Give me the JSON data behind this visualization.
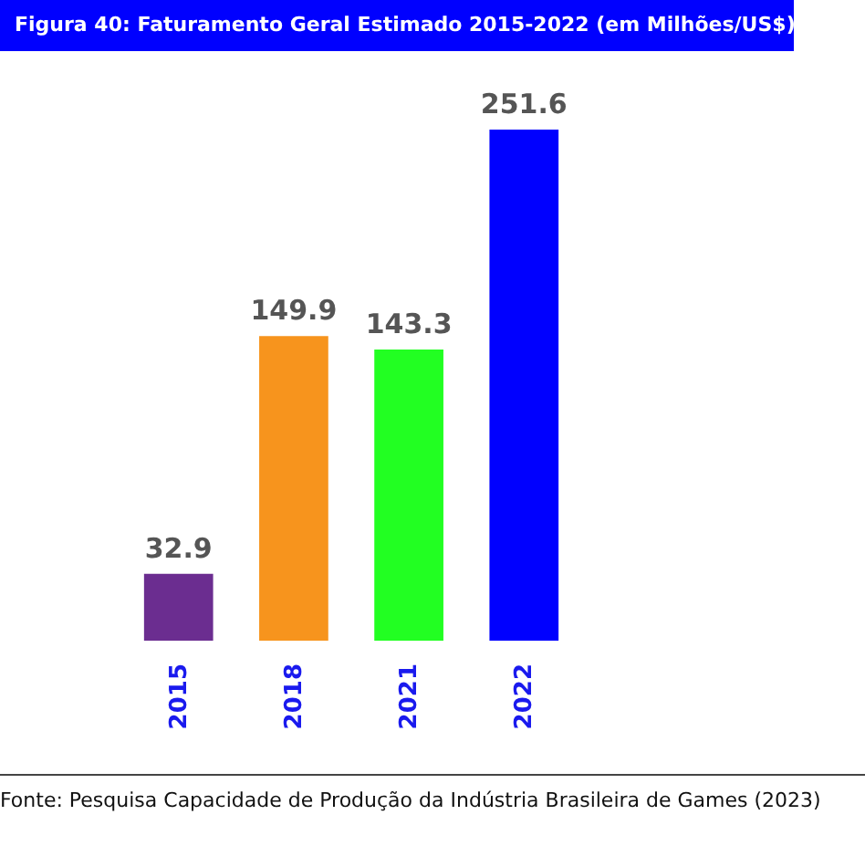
{
  "chart_data": {
    "type": "bar",
    "title": "Figura 40:  Faturamento Geral Estimado 2015-2022 (em Milhões/US$)",
    "categories": [
      "2015",
      "2018",
      "2021",
      "2022"
    ],
    "values": [
      32.9,
      149.9,
      143.3,
      251.6
    ],
    "colors": [
      "#6b2d90",
      "#f7941d",
      "#22ff22",
      "#0000ff"
    ],
    "data_labels": true,
    "grid": false,
    "legend": false,
    "tick_labels": "x",
    "annotations": [
      "Fonte: Pesquisa Capacidade de Produção da Indústria Brasileira de Games (2023)"
    ]
  }
}
